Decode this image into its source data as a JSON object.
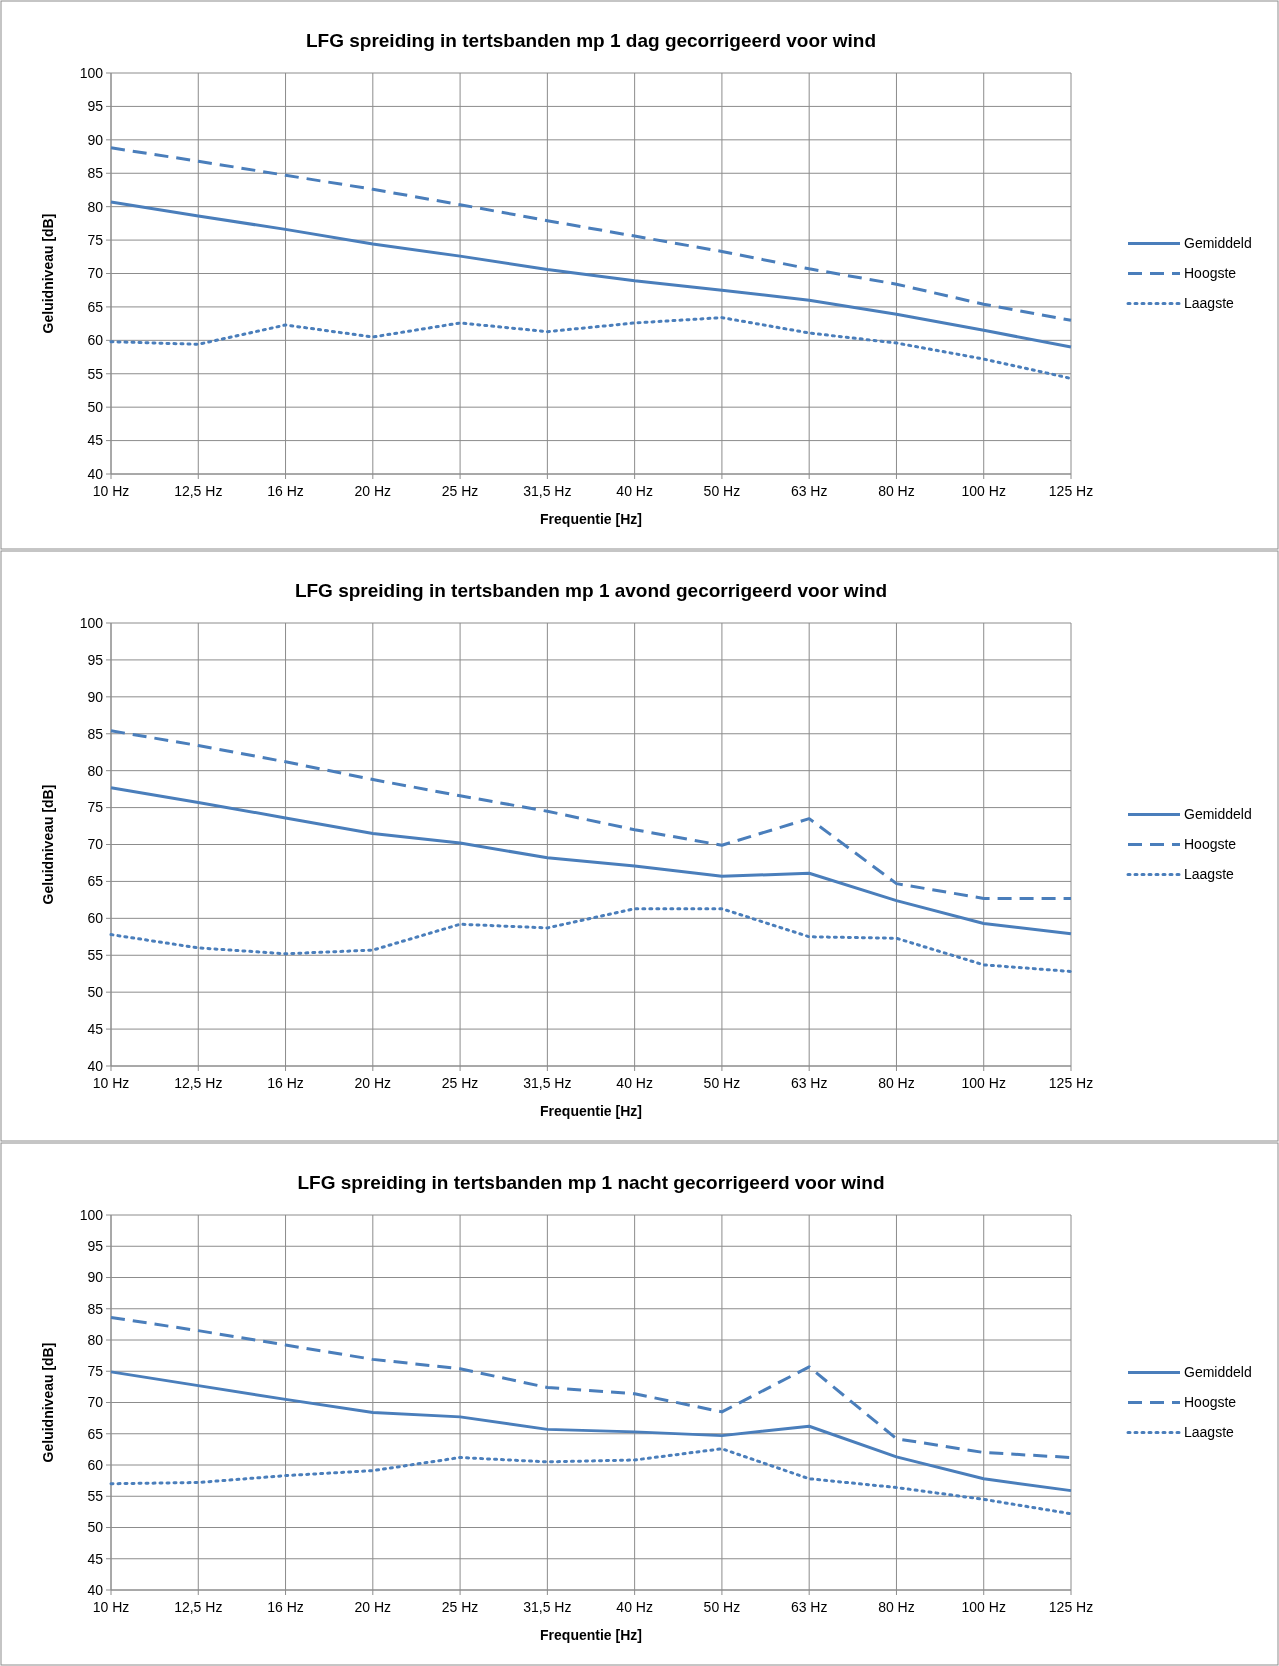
{
  "chart_data": [
    {
      "type": "line",
      "title": "LFG spreiding in tertsbanden mp 1 dag gecorrigeerd voor wind",
      "xlabel": "Frequentie [Hz]",
      "ylabel": "Geluidniveau [dB]",
      "categories": [
        "10 Hz",
        "12,5 Hz",
        "16 Hz",
        "20 Hz",
        "25 Hz",
        "31,5 Hz",
        "40 Hz",
        "50 Hz",
        "63 Hz",
        "80 Hz",
        "100 Hz",
        "125 Hz"
      ],
      "ylim": [
        40,
        100
      ],
      "yticks": [
        40,
        45,
        50,
        55,
        60,
        65,
        70,
        75,
        80,
        85,
        90,
        95,
        100
      ],
      "grid": true,
      "legend": "right",
      "series": [
        {
          "name": "Gemiddeld",
          "color": "#4a7ebb",
          "line_style": "solid",
          "values": [
            80.7,
            78.6,
            76.6,
            74.4,
            72.6,
            70.6,
            68.9,
            67.5,
            66.0,
            63.9,
            61.5,
            59.0
          ]
        },
        {
          "name": "Hoogste",
          "color": "#4a7ebb",
          "line_style": "dashed",
          "values": [
            88.8,
            86.8,
            84.7,
            82.6,
            80.3,
            77.9,
            75.6,
            73.3,
            70.7,
            68.4,
            65.4,
            63.0
          ]
        },
        {
          "name": "Laagste",
          "color": "#4a7ebb",
          "line_style": "dotted",
          "values": [
            59.8,
            59.4,
            62.3,
            60.5,
            62.6,
            61.3,
            62.6,
            63.4,
            61.1,
            59.6,
            57.2,
            54.3
          ]
        }
      ]
    },
    {
      "type": "line",
      "title": "LFG spreiding in tertsbanden mp 1 avond gecorrigeerd voor wind",
      "xlabel": "Frequentie [Hz]",
      "ylabel": "Geluidniveau [dB]",
      "categories": [
        "10 Hz",
        "12,5 Hz",
        "16 Hz",
        "20 Hz",
        "25 Hz",
        "31,5 Hz",
        "40 Hz",
        "50 Hz",
        "63 Hz",
        "80 Hz",
        "100 Hz",
        "125 Hz"
      ],
      "ylim": [
        40,
        100
      ],
      "yticks": [
        40,
        45,
        50,
        55,
        60,
        65,
        70,
        75,
        80,
        85,
        90,
        95,
        100
      ],
      "grid": true,
      "legend": "right",
      "series": [
        {
          "name": "Gemiddeld",
          "color": "#4a7ebb",
          "line_style": "solid",
          "values": [
            77.7,
            75.7,
            73.6,
            71.5,
            70.2,
            68.2,
            67.1,
            65.7,
            66.1,
            62.4,
            59.3,
            57.9
          ]
        },
        {
          "name": "Hoogste",
          "color": "#4a7ebb",
          "line_style": "dashed",
          "values": [
            85.4,
            83.4,
            81.2,
            78.8,
            76.6,
            74.5,
            72.0,
            69.9,
            73.5,
            64.7,
            62.7,
            62.7
          ]
        },
        {
          "name": "Laagste",
          "color": "#4a7ebb",
          "line_style": "dotted",
          "values": [
            57.8,
            56.0,
            55.2,
            55.7,
            59.2,
            58.7,
            61.3,
            61.3,
            57.5,
            57.3,
            53.7,
            52.8
          ]
        }
      ]
    },
    {
      "type": "line",
      "title": "LFG spreiding in tertsbanden mp 1 nacht gecorrigeerd voor wind",
      "xlabel": "Frequentie [Hz]",
      "ylabel": "Geluidniveau [dB]",
      "categories": [
        "10 Hz",
        "12,5 Hz",
        "16 Hz",
        "20 Hz",
        "25 Hz",
        "31,5 Hz",
        "40 Hz",
        "50 Hz",
        "63 Hz",
        "80 Hz",
        "100 Hz",
        "125 Hz"
      ],
      "ylim": [
        40,
        100
      ],
      "yticks": [
        40,
        45,
        50,
        55,
        60,
        65,
        70,
        75,
        80,
        85,
        90,
        95,
        100
      ],
      "grid": true,
      "legend": "right",
      "series": [
        {
          "name": "Gemiddeld",
          "color": "#4a7ebb",
          "line_style": "solid",
          "values": [
            74.9,
            72.7,
            70.5,
            68.4,
            67.7,
            65.7,
            65.3,
            64.7,
            66.2,
            61.3,
            57.8,
            55.9
          ]
        },
        {
          "name": "Hoogste",
          "color": "#4a7ebb",
          "line_style": "dashed",
          "values": [
            83.6,
            81.5,
            79.2,
            76.9,
            75.4,
            72.4,
            71.4,
            68.5,
            75.7,
            64.2,
            62.0,
            61.2
          ]
        },
        {
          "name": "Laagste",
          "color": "#4a7ebb",
          "line_style": "dotted",
          "values": [
            57.0,
            57.2,
            58.3,
            59.1,
            61.2,
            60.5,
            60.8,
            62.6,
            57.8,
            56.4,
            54.5,
            52.2
          ]
        }
      ]
    }
  ]
}
